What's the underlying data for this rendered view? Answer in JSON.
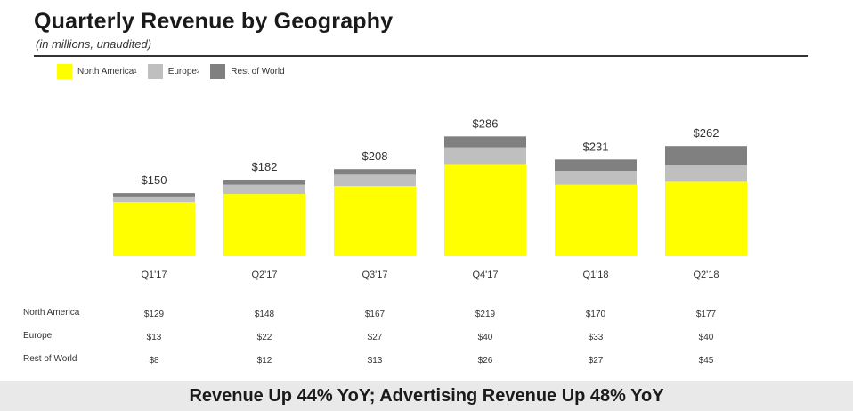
{
  "header": {
    "title": "Quarterly Revenue by Geography",
    "subtitle": "(in millions, unaudited)"
  },
  "legend": {
    "items": [
      {
        "label": "North America",
        "sup": "1",
        "color": "#ffff00"
      },
      {
        "label": "Europe",
        "sup": "2",
        "color": "#bfbfbf"
      },
      {
        "label": "Rest of World",
        "sup": "",
        "color": "#808080"
      }
    ]
  },
  "table": {
    "rows": [
      {
        "label": "North America",
        "values": [
          "$129",
          "$148",
          "$167",
          "$219",
          "$170",
          "$177"
        ]
      },
      {
        "label": "Europe",
        "values": [
          "$13",
          "$22",
          "$27",
          "$40",
          "$33",
          "$40"
        ]
      },
      {
        "label": "Rest of World",
        "values": [
          "$8",
          "$12",
          "$13",
          "$26",
          "$27",
          "$45"
        ]
      }
    ]
  },
  "footer": {
    "text": "Revenue Up 44% YoY; Advertising Revenue Up 48% YoY"
  },
  "chart_data": {
    "type": "bar",
    "stacked": true,
    "title": "Quarterly Revenue by Geography",
    "subtitle": "(in millions, unaudited)",
    "categories": [
      "Q1'17",
      "Q2'17",
      "Q3'17",
      "Q4'17",
      "Q1'18",
      "Q2'18"
    ],
    "series": [
      {
        "name": "North America",
        "color": "#ffff00",
        "values": [
          129,
          148,
          167,
          219,
          170,
          177
        ]
      },
      {
        "name": "Europe",
        "color": "#bfbfbf",
        "values": [
          13,
          22,
          27,
          40,
          33,
          40
        ]
      },
      {
        "name": "Rest of World",
        "color": "#808080",
        "values": [
          8,
          12,
          13,
          26,
          27,
          45
        ]
      }
    ],
    "totals": [
      150,
      182,
      208,
      286,
      231,
      262
    ],
    "total_labels": [
      "$150",
      "$182",
      "$208",
      "$286",
      "$231",
      "$262"
    ],
    "ylim": [
      0,
      320
    ],
    "grid": false,
    "legend_position": "top-left"
  }
}
